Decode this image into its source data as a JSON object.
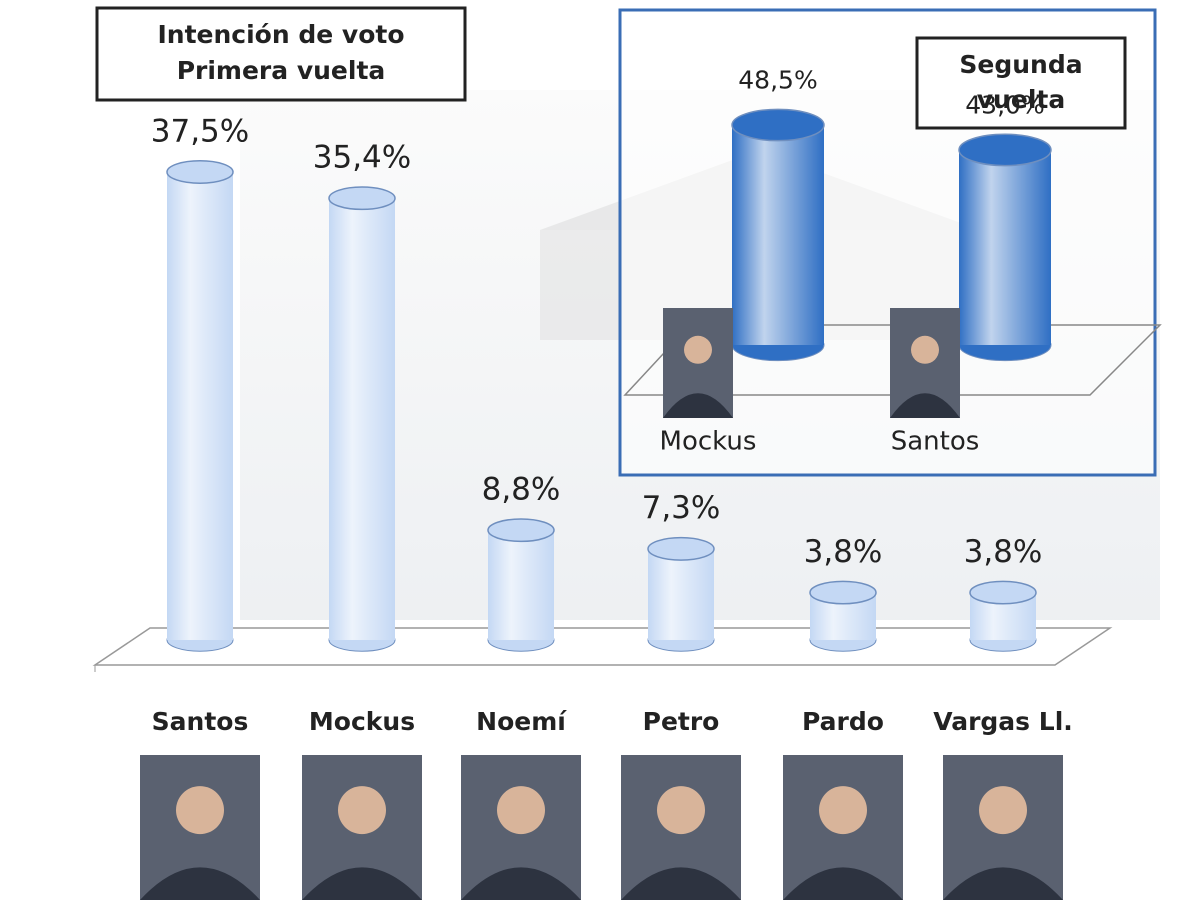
{
  "chart_data": [
    {
      "type": "bar",
      "title": [
        "Intención de voto",
        "Primera vuelta"
      ],
      "categories": [
        "Santos",
        "Mockus",
        "Noemí",
        "Petro",
        "Pardo",
        "Vargas Ll."
      ],
      "values": [
        37.5,
        35.4,
        8.8,
        7.3,
        3.8,
        3.8
      ],
      "value_labels": [
        "37,5%",
        "35,4%",
        "8,8%",
        "7,3%",
        "3,8%",
        "3,8%"
      ],
      "color": "#c4d8f4"
    },
    {
      "type": "bar",
      "title": [
        "Segunda",
        "vuelta"
      ],
      "categories": [
        "Mockus",
        "Santos"
      ],
      "values": [
        48.5,
        43.0
      ],
      "value_labels": [
        "48,5%",
        "43,0%"
      ],
      "color": "#2f6fc4"
    }
  ]
}
